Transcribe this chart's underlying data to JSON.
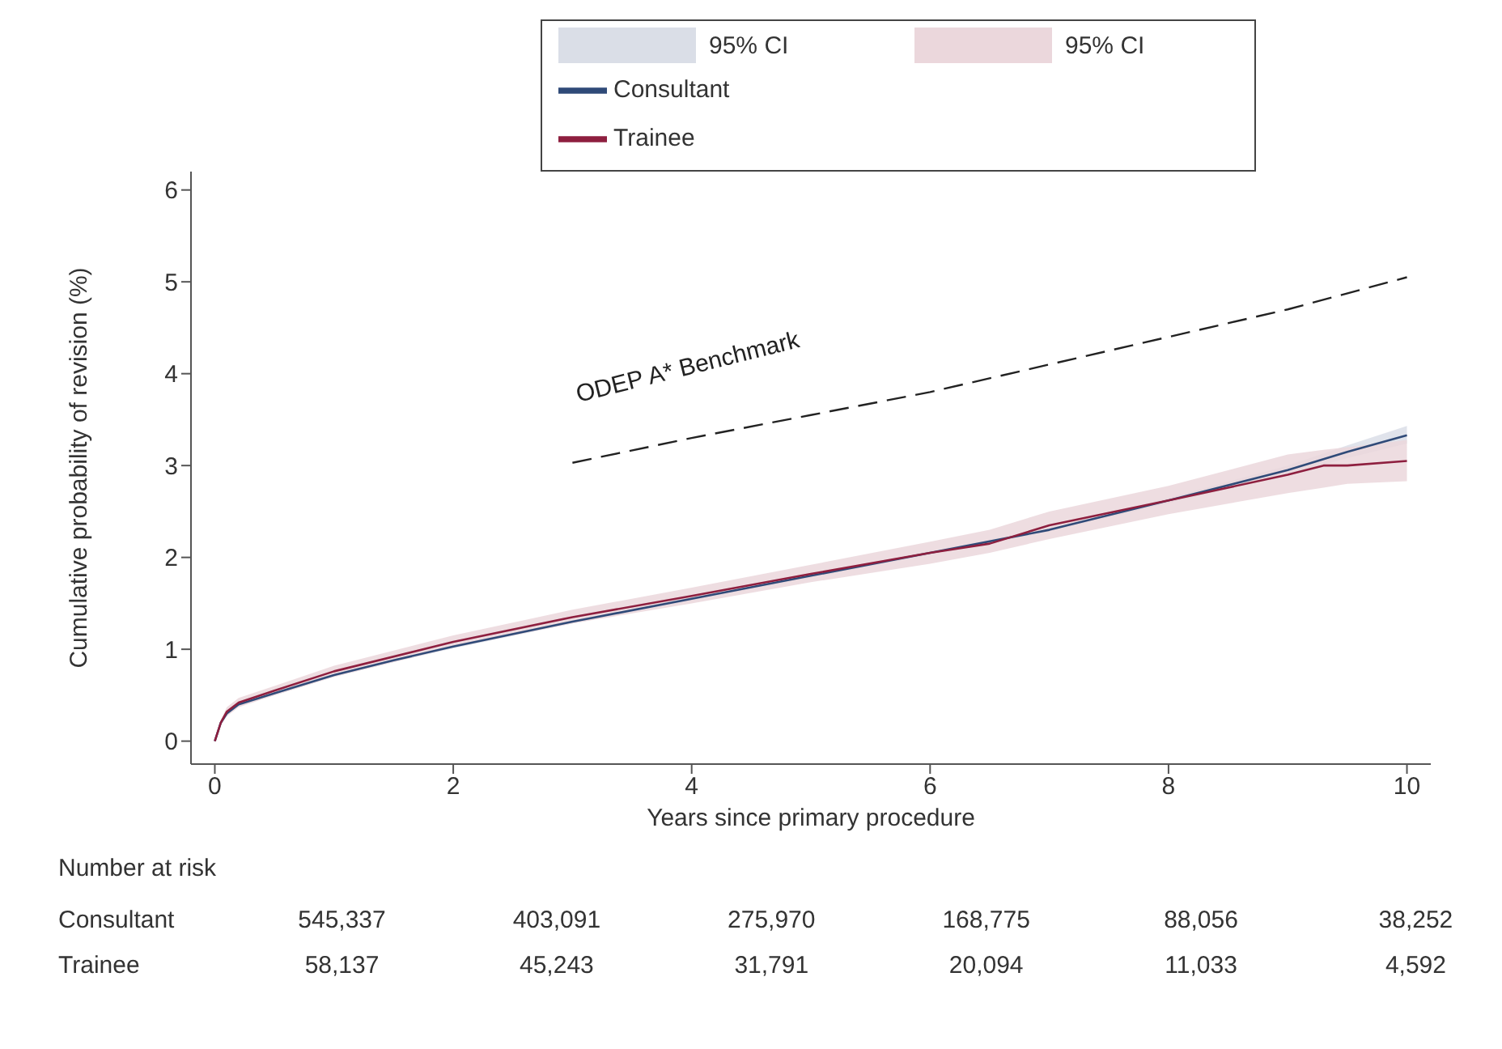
{
  "chart_data": {
    "type": "line",
    "xlabel": "Years since primary procedure",
    "ylabel": "Cumulative probability of revision (%)",
    "xlim": [
      -0.2,
      10.2
    ],
    "ylim": [
      -0.25,
      6.2
    ],
    "xticks": [
      0,
      2,
      4,
      6,
      8,
      10
    ],
    "yticks": [
      0,
      1,
      2,
      3,
      4,
      5,
      6
    ],
    "grid": false,
    "legend": "top",
    "marker": "none",
    "series": [
      {
        "name": "Consultant",
        "color": "#2f4a78",
        "x": [
          0,
          0.05,
          0.1,
          0.2,
          0.5,
          1,
          1.5,
          2,
          3,
          4,
          5,
          6,
          7,
          8,
          9,
          9.5,
          10
        ],
        "values": [
          0,
          0.2,
          0.3,
          0.4,
          0.52,
          0.72,
          0.88,
          1.03,
          1.3,
          1.55,
          1.8,
          2.05,
          2.3,
          2.62,
          2.95,
          3.15,
          3.33
        ],
        "lower": [
          0,
          0.19,
          0.28,
          0.38,
          0.5,
          0.7,
          0.86,
          1.01,
          1.28,
          1.53,
          1.78,
          2.03,
          2.28,
          2.59,
          2.9,
          3.08,
          3.24
        ],
        "upper": [
          0,
          0.21,
          0.32,
          0.42,
          0.54,
          0.74,
          0.9,
          1.05,
          1.32,
          1.57,
          1.82,
          2.07,
          2.32,
          2.65,
          3.0,
          3.22,
          3.43
        ]
      },
      {
        "name": "Trainee",
        "color": "#8e1f3f",
        "x": [
          0,
          0.05,
          0.1,
          0.2,
          0.5,
          1,
          2,
          3,
          4,
          5,
          6,
          6.5,
          7,
          8,
          9,
          9.3,
          9.5,
          10
        ],
        "values": [
          0,
          0.2,
          0.32,
          0.42,
          0.55,
          0.76,
          1.08,
          1.35,
          1.58,
          1.82,
          2.05,
          2.15,
          2.35,
          2.62,
          2.9,
          3.0,
          3.0,
          3.05
        ],
        "lower": [
          0,
          0.17,
          0.27,
          0.37,
          0.5,
          0.7,
          1.02,
          1.28,
          1.5,
          1.73,
          1.93,
          2.05,
          2.2,
          2.47,
          2.7,
          2.76,
          2.8,
          2.83
        ],
        "upper": [
          0,
          0.23,
          0.37,
          0.47,
          0.6,
          0.82,
          1.15,
          1.43,
          1.67,
          1.92,
          2.17,
          2.3,
          2.5,
          2.78,
          3.12,
          3.17,
          3.2,
          3.28
        ]
      },
      {
        "name": "ODEP A* Benchmark",
        "color": "#222222",
        "line_style": "dashed",
        "x": [
          3,
          4,
          5,
          6,
          7,
          8,
          9,
          10
        ],
        "values": [
          3.03,
          3.3,
          3.55,
          3.8,
          4.1,
          4.4,
          4.7,
          5.05
        ]
      }
    ],
    "annotations": [
      "95% CI",
      "95% CI",
      "Number at risk",
      "Consultant",
      "545,337",
      "403,091",
      "275,970",
      "168,775",
      "88,056",
      "38,252",
      "Trainee",
      "58,137",
      "45,243",
      "31,791",
      "20,094",
      "11,033",
      "4,592"
    ]
  }
}
